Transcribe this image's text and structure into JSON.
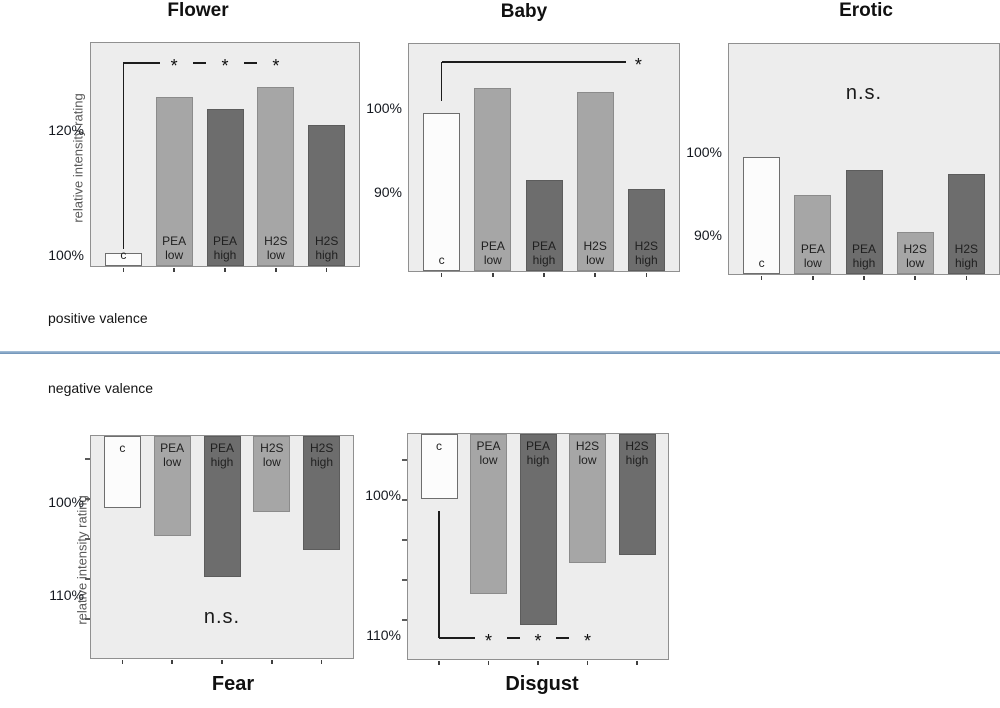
{
  "figure": {
    "y_axis_title": "relative intensity rating",
    "positive_section_label": "positive valence",
    "negative_section_label": "negative valence"
  },
  "colors": {
    "plot_background": "#ededed",
    "plot_border": "#909090",
    "bar_control": "#fcfcfc",
    "bar_light": "#a6a6a6",
    "bar_dark": "#6d6d6d",
    "divider_blue": "#6b90b6",
    "annotation_black": "#1c1c1c"
  },
  "chart_data": [
    {
      "type": "bar",
      "title": "Flower",
      "valence": "positive",
      "ylabel": "relative intensity rating",
      "categories": [
        "c",
        "PEA low",
        "PEA high",
        "H2S low",
        "H2S high"
      ],
      "values": [
        100.5,
        125.5,
        123.5,
        127,
        121
      ],
      "unit": "%",
      "bar_styles": [
        "control",
        "light",
        "dark",
        "light",
        "dark"
      ],
      "y_tick_labels": [
        "120%",
        "100%"
      ],
      "y_tick_values": [
        120,
        100
      ],
      "y_axis_inverted": false,
      "significance": {
        "type": "bracket",
        "from": "c",
        "stars_at": [
          "PEA low",
          "PEA high",
          "H2S low"
        ],
        "label": "*"
      }
    },
    {
      "type": "bar",
      "title": "Baby",
      "valence": "positive",
      "ylabel": "relative intensity rating",
      "categories": [
        "c",
        "PEA low",
        "PEA high",
        "H2S low",
        "H2S high"
      ],
      "values": [
        99.5,
        102.5,
        91.5,
        102,
        90.5
      ],
      "unit": "%",
      "bar_styles": [
        "control",
        "light",
        "dark",
        "light",
        "dark"
      ],
      "y_tick_labels": [
        "100%",
        "90%"
      ],
      "y_tick_values": [
        100,
        90
      ],
      "y_axis_inverted": false,
      "significance": {
        "type": "bracket",
        "from": "c",
        "star_at_end": true,
        "label": "*"
      }
    },
    {
      "type": "bar",
      "title": "Erotic",
      "valence": "positive",
      "ylabel": "relative intensity rating",
      "categories": [
        "c",
        "PEA low",
        "PEA high",
        "H2S low",
        "H2S high"
      ],
      "values": [
        99.5,
        95,
        98,
        90.5,
        97.5
      ],
      "unit": "%",
      "bar_styles": [
        "control",
        "light",
        "dark",
        "light",
        "dark"
      ],
      "y_tick_labels": [
        "100%",
        "90%"
      ],
      "y_tick_values": [
        100,
        90
      ],
      "y_axis_inverted": false,
      "significance": {
        "type": "ns",
        "label": "n.s."
      }
    },
    {
      "type": "bar",
      "title": "Fear",
      "valence": "negative",
      "ylabel": "relative intensity rating",
      "categories": [
        "c",
        "PEA low",
        "PEA high",
        "H2S low",
        "H2S high"
      ],
      "values": [
        100.5,
        103.5,
        108,
        101,
        105
      ],
      "unit": "%",
      "bar_styles": [
        "control",
        "light",
        "dark",
        "light",
        "dark"
      ],
      "y_tick_labels": [
        "100%",
        "110%"
      ],
      "y_tick_values": [
        100,
        110
      ],
      "y_axis_inverted": true,
      "significance": {
        "type": "ns",
        "label": "n.s."
      }
    },
    {
      "type": "bar",
      "title": "Disgust",
      "valence": "negative",
      "ylabel": "relative intensity rating",
      "categories": [
        "c",
        "PEA low",
        "PEA high",
        "H2S low",
        "H2S high"
      ],
      "values": [
        100.2,
        107,
        109.2,
        104.8,
        104.2
      ],
      "unit": "%",
      "bar_styles": [
        "control",
        "light",
        "dark",
        "light",
        "dark"
      ],
      "y_tick_labels": [
        "100%",
        "110%"
      ],
      "y_tick_values": [
        100,
        110
      ],
      "y_axis_inverted": true,
      "significance": {
        "type": "bracket",
        "from": "c",
        "stars_at": [
          "PEA low",
          "PEA high",
          "H2S low"
        ],
        "label": "*"
      }
    }
  ]
}
